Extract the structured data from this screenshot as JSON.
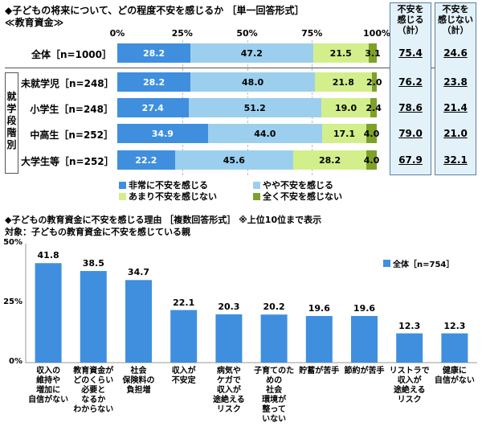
{
  "chart1": {
    "title": "◆子どもの将来について、どの程度不安を感じるか ［単一回答形式］",
    "subtitle": "≪教育資金≫",
    "ticks": [
      "0%",
      "25%",
      "50%",
      "75%",
      "100%"
    ],
    "group_label": "就学段階別",
    "box_headers": {
      "col1": "不安を\n感じる\n（計）",
      "col2": "不安を\n感じない\n（計）"
    },
    "colors": [
      "#3f8fde",
      "#9ccfee",
      "#d3ef8b",
      "#7ea12a"
    ],
    "legend": [
      "非常に不安を感じる",
      "やや不安を感じる",
      "あまり不安を感じない",
      "全く不安を感じない"
    ]
  },
  "chart2": {
    "title": "◆子どもの教育資金に不安を感じる理由 ［複数回答形式］ ※上位10位まで表示",
    "subtitle": "対象：子どもの教育資金に不安を感じている親",
    "yticks": [
      "50%",
      "25%",
      "0%"
    ],
    "legend": "全体［n=754］",
    "color": "#3f8fde"
  },
  "chart_data": [
    {
      "type": "bar",
      "orientation": "horizontal-stacked",
      "categories": [
        "全体［n=1000］",
        "未就学児［n=248］",
        "小学生［n=248］",
        "中高生［n=252］",
        "大学生等［n=252］"
      ],
      "series": [
        {
          "name": "非常に不安を感じる",
          "values": [
            28.2,
            28.2,
            27.4,
            34.9,
            22.2
          ]
        },
        {
          "name": "やや不安を感じる",
          "values": [
            47.2,
            48.0,
            51.2,
            44.0,
            45.6
          ]
        },
        {
          "name": "あまり不安を感じない",
          "values": [
            21.5,
            21.8,
            19.0,
            17.1,
            28.2
          ]
        },
        {
          "name": "全く不安を感じない",
          "values": [
            3.1,
            2.0,
            2.4,
            4.0,
            4.0
          ]
        }
      ],
      "totals": {
        "不安を感じる（計）": [
          "75.4",
          "76.2",
          "78.6",
          "79.0",
          "67.9"
        ],
        "不安を感じない（計）": [
          "24.6",
          "23.8",
          "21.4",
          "21.0",
          "32.1"
        ]
      },
      "xlim": [
        0,
        100
      ]
    },
    {
      "type": "bar",
      "categories": [
        "収入の\n維持や\n増加に\n自信がない",
        "教育資金が\nどのくらい\n必要と\nなるか\nわからない",
        "社会\n保険料の\n負担増",
        "収入が\n不安定",
        "病気や\nケガで\n収入が\n途絶える\nリスク",
        "子育てのための\n社会\n環境が\n整って\nいない",
        "貯蓄が苦手",
        "節約が苦手",
        "リストラで\n収入が\n途絶える\nリスク",
        "健康に\n自信がない"
      ],
      "series": [
        {
          "name": "全体［n=754］",
          "values": [
            41.8,
            38.5,
            34.7,
            22.1,
            20.3,
            20.2,
            19.6,
            19.6,
            12.3,
            12.3
          ]
        }
      ],
      "ylim": [
        0,
        50
      ]
    }
  ]
}
